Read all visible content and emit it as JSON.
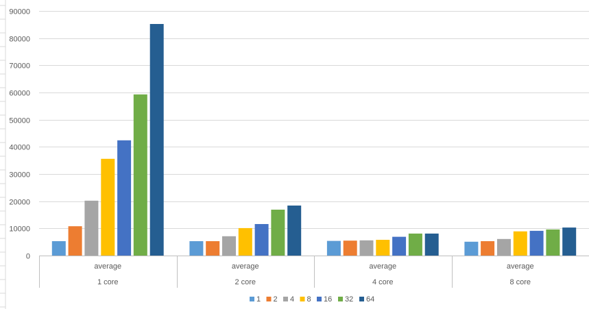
{
  "chart_data": {
    "type": "bar",
    "title": "",
    "xlabel": "",
    "ylabel": "",
    "ylim": [
      0,
      90000
    ],
    "yticks": [
      0,
      10000,
      20000,
      30000,
      40000,
      50000,
      60000,
      70000,
      80000,
      90000
    ],
    "grid": true,
    "legend_position": "bottom",
    "category_groups": [
      {
        "outer": "1 core",
        "inner": "average"
      },
      {
        "outer": "2 core",
        "inner": "average"
      },
      {
        "outer": "4 core",
        "inner": "average"
      },
      {
        "outer": "8 core",
        "inner": "average"
      }
    ],
    "series": [
      {
        "name": "1",
        "color": "#5b9bd5",
        "values": [
          5300,
          5300,
          5400,
          5100
        ]
      },
      {
        "name": "2",
        "color": "#ed7d31",
        "values": [
          10800,
          5300,
          5500,
          5300
        ]
      },
      {
        "name": "4",
        "color": "#a5a5a5",
        "values": [
          20200,
          7100,
          5600,
          6100
        ]
      },
      {
        "name": "8",
        "color": "#ffc000",
        "values": [
          35600,
          10100,
          5800,
          8900
        ]
      },
      {
        "name": "16",
        "color": "#4472c4",
        "values": [
          42400,
          11600,
          6900,
          9100
        ]
      },
      {
        "name": "32",
        "color": "#70ad47",
        "values": [
          59300,
          16900,
          8100,
          9600
        ]
      },
      {
        "name": "64",
        "color": "#255e91",
        "values": [
          85200,
          18400,
          8100,
          10300
        ]
      }
    ]
  }
}
